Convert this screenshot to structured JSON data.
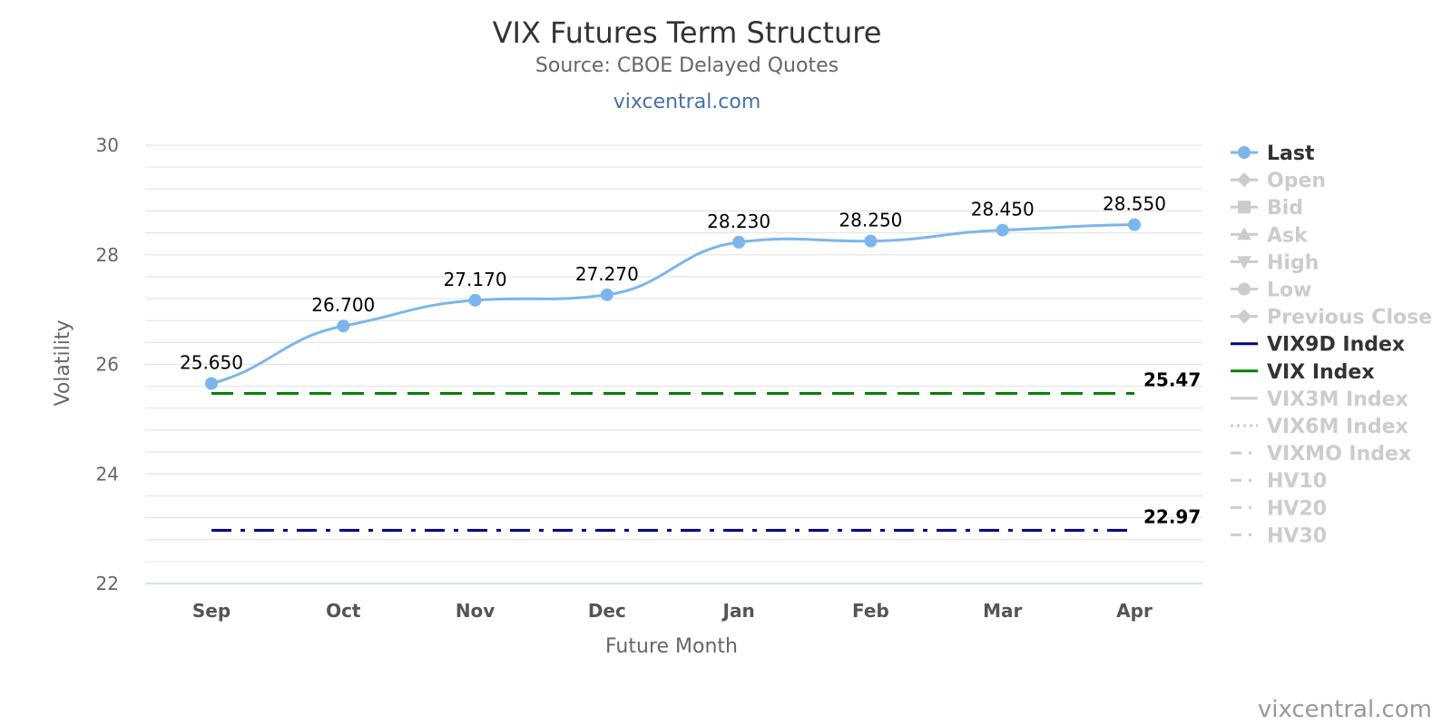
{
  "chart_data": {
    "type": "line",
    "title": "VIX Futures Term Structure",
    "subtitle": "Source: CBOE Delayed Quotes",
    "link": "vixcentral.com",
    "credit": "vixcentral.com",
    "xlabel": "Future Month",
    "ylabel": "Volatility",
    "ylim": [
      22,
      30
    ],
    "yticks": [
      "22",
      "24",
      "26",
      "28",
      "30"
    ],
    "grid": true,
    "legend_position": "right",
    "categories": [
      "Sep",
      "Oct",
      "Nov",
      "Dec",
      "Jan",
      "Feb",
      "Mar",
      "Apr"
    ],
    "series": [
      {
        "name": "Last",
        "values": [
          25.65,
          26.7,
          27.17,
          27.27,
          28.23,
          28.25,
          28.45,
          28.55
        ],
        "labels": [
          "25.650",
          "26.700",
          "27.170",
          "27.270",
          "28.230",
          "28.250",
          "28.450",
          "28.550"
        ],
        "color": "#7cb5ec"
      },
      {
        "name": "VIX9D Index",
        "value": 22.97,
        "label": "22.97",
        "color": "#000080"
      },
      {
        "name": "VIX Index",
        "value": 25.47,
        "label": "25.47",
        "color": "#008000"
      }
    ],
    "legend": [
      {
        "name": "Last",
        "marker": "circle",
        "active": true,
        "color": "#7cb5ec"
      },
      {
        "name": "Open",
        "marker": "diamond",
        "active": false,
        "color": "#cccccc"
      },
      {
        "name": "Bid",
        "marker": "square",
        "active": false,
        "color": "#cccccc"
      },
      {
        "name": "Ask",
        "marker": "triangle",
        "active": false,
        "color": "#cccccc"
      },
      {
        "name": "High",
        "marker": "triangle-down",
        "active": false,
        "color": "#cccccc"
      },
      {
        "name": "Low",
        "marker": "circle",
        "active": false,
        "color": "#cccccc"
      },
      {
        "name": "Previous Close",
        "marker": "diamond",
        "active": false,
        "color": "#cccccc"
      },
      {
        "name": "VIX9D Index",
        "marker": "line",
        "active": true,
        "color": "#000080"
      },
      {
        "name": "VIX Index",
        "marker": "line",
        "active": true,
        "color": "#008000"
      },
      {
        "name": "VIX3M Index",
        "marker": "line",
        "active": false,
        "color": "#cccccc"
      },
      {
        "name": "VIX6M Index",
        "marker": "dotted",
        "active": false,
        "color": "#cccccc"
      },
      {
        "name": "VIXMO Index",
        "marker": "dashdot",
        "active": false,
        "color": "#cccccc"
      },
      {
        "name": "HV10",
        "marker": "dashdot",
        "active": false,
        "color": "#cccccc"
      },
      {
        "name": "HV20",
        "marker": "dashdot",
        "active": false,
        "color": "#cccccc"
      },
      {
        "name": "HV30",
        "marker": "dashdot",
        "active": false,
        "color": "#cccccc"
      }
    ]
  }
}
